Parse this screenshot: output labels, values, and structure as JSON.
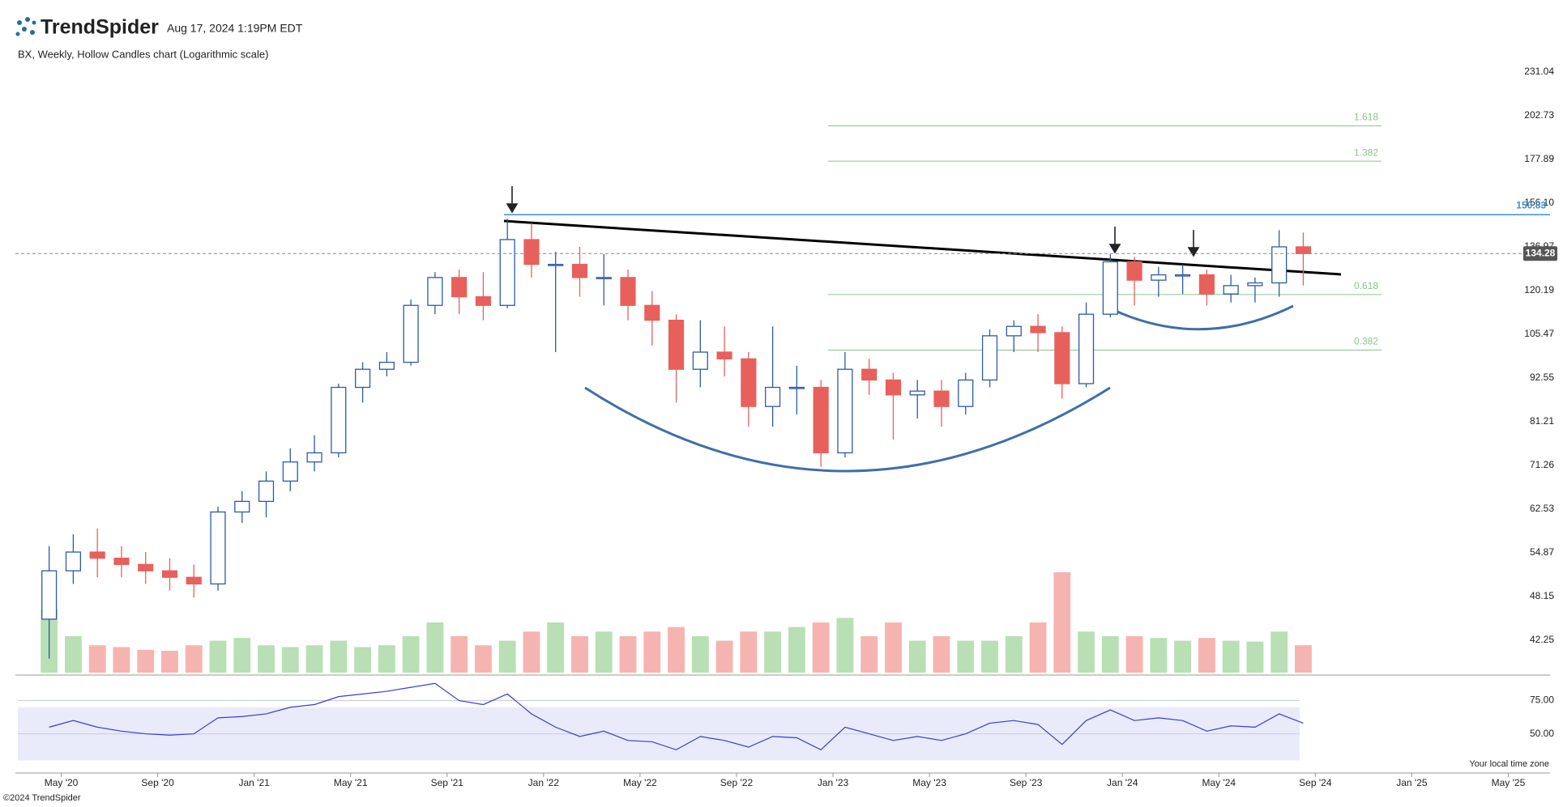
{
  "header": {
    "brand": "TrendSpider",
    "timestamp": "Aug 17, 2024 1:19PM EDT"
  },
  "footer": {
    "copyright": "©2024 TrendSpider",
    "timezone_note": "Your local time zone"
  },
  "chart_data": {
    "type": "candlestick",
    "title": "BX, Weekly, Hollow Candles chart (Logarithmic scale)",
    "log_scale": true,
    "x": [
      "2020-04",
      "2020-05",
      "2020-06",
      "2020-07",
      "2020-08",
      "2020-09",
      "2020-10",
      "2020-11",
      "2020-12",
      "2021-01",
      "2021-02",
      "2021-03",
      "2021-04",
      "2021-05",
      "2021-06",
      "2021-07",
      "2021-08",
      "2021-09",
      "2021-10",
      "2021-11",
      "2021-12",
      "2022-01",
      "2022-02",
      "2022-03",
      "2022-04",
      "2022-05",
      "2022-06",
      "2022-07",
      "2022-08",
      "2022-09",
      "2022-10",
      "2022-11",
      "2022-12",
      "2023-01",
      "2023-02",
      "2023-03",
      "2023-04",
      "2023-05",
      "2023-06",
      "2023-07",
      "2023-08",
      "2023-09",
      "2023-10",
      "2023-11",
      "2023-12",
      "2024-01",
      "2024-02",
      "2024-03",
      "2024-04",
      "2024-05",
      "2024-06",
      "2024-07",
      "2024-08"
    ],
    "open": [
      45,
      52,
      55,
      54,
      53,
      52,
      51,
      50,
      62,
      64,
      68,
      72,
      74,
      90,
      95,
      97,
      115,
      125,
      118,
      115,
      140,
      130,
      130,
      125,
      125,
      115,
      110,
      95,
      100,
      98,
      85,
      90,
      90,
      74,
      95,
      92,
      88,
      89,
      85,
      92,
      105,
      108,
      106,
      91,
      112,
      131,
      124,
      126,
      126,
      119,
      122,
      123,
      137
    ],
    "high": [
      56,
      58,
      59,
      56,
      55,
      54,
      53,
      63,
      66,
      70,
      75,
      78,
      91,
      97,
      100,
      117,
      127,
      128,
      127,
      149,
      147,
      135,
      137,
      134,
      128,
      120,
      112,
      110,
      108,
      100,
      108,
      96,
      92,
      100,
      98,
      94,
      92,
      92,
      94,
      107,
      110,
      112,
      108,
      116,
      134,
      133,
      129,
      130,
      128,
      126,
      125,
      144,
      143
    ],
    "low": [
      40,
      50,
      51,
      51,
      50,
      49,
      48,
      49,
      60,
      61,
      66,
      70,
      73,
      86,
      93,
      96,
      112,
      112,
      110,
      114,
      125,
      100,
      118,
      115,
      110,
      102,
      86,
      90,
      93,
      80,
      80,
      83,
      71,
      73,
      88,
      77,
      82,
      80,
      83,
      90,
      100,
      100,
      87,
      90,
      111,
      115,
      118,
      119,
      115,
      116,
      116,
      118,
      122
    ],
    "close": [
      52,
      55,
      54,
      53,
      52,
      51,
      50,
      62,
      64,
      68,
      72,
      74,
      90,
      95,
      97,
      115,
      125,
      118,
      115,
      140,
      130,
      130,
      125,
      125,
      115,
      110,
      95,
      100,
      98,
      85,
      90,
      90,
      74,
      95,
      92,
      88,
      89,
      85,
      92,
      105,
      108,
      106,
      91,
      112,
      131,
      124,
      126,
      126,
      119,
      122,
      123,
      137,
      134.28
    ],
    "volume": [
      70,
      40,
      30,
      28,
      25,
      24,
      30,
      35,
      38,
      30,
      28,
      30,
      35,
      28,
      30,
      40,
      55,
      40,
      30,
      35,
      45,
      55,
      40,
      45,
      40,
      45,
      50,
      40,
      35,
      45,
      45,
      50,
      55,
      60,
      40,
      55,
      35,
      40,
      35,
      35,
      40,
      55,
      110,
      45,
      40,
      40,
      38,
      35,
      38,
      35,
      34,
      45,
      30
    ],
    "up_color": "#2c5aa8",
    "down_color": "#e8605b",
    "volume_up_color": "#b9dfb5",
    "volume_down_color": "#f6b4b1",
    "xlim": [
      "2020-03",
      "2025-07"
    ],
    "xticks": [
      {
        "value": "2020-05",
        "label": "May '20"
      },
      {
        "value": "2020-09",
        "label": "Sep '20"
      },
      {
        "value": "2021-01",
        "label": "Jan '21"
      },
      {
        "value": "2021-05",
        "label": "May '21"
      },
      {
        "value": "2021-09",
        "label": "Sep '21"
      },
      {
        "value": "2022-01",
        "label": "Jan '22"
      },
      {
        "value": "2022-05",
        "label": "May '22"
      },
      {
        "value": "2022-09",
        "label": "Sep '22"
      },
      {
        "value": "2023-01",
        "label": "Jan '23"
      },
      {
        "value": "2023-05",
        "label": "May '23"
      },
      {
        "value": "2023-09",
        "label": "Sep '23"
      },
      {
        "value": "2024-01",
        "label": "Jan '24"
      },
      {
        "value": "2024-05",
        "label": "May '24"
      },
      {
        "value": "2024-09",
        "label": "Sep '24"
      },
      {
        "value": "2025-01",
        "label": "Jan '25"
      },
      {
        "value": "2025-05",
        "label": "May '25"
      }
    ],
    "ylim": [
      38.35,
      239.6
    ],
    "yticks": [
      231.04,
      202.73,
      177.89,
      {
        "value": 156.1,
        "label": "156.10"
      },
      136.97,
      120.19,
      105.47,
      92.55,
      81.21,
      71.26,
      62.53,
      54.87,
      48.15,
      42.25
    ],
    "resistance": {
      "value": 150.83,
      "color": "#3d8fd6"
    },
    "last_price": 134.28,
    "fib_levels": [
      {
        "label": "1.618",
        "value": 196.7
      },
      {
        "label": "1.382",
        "value": 177
      },
      {
        "label": "0.618",
        "value": 118.8
      },
      {
        "label": "0.382",
        "value": 100.6
      }
    ],
    "fib_color": "#8bc48a",
    "rsi": {
      "values": [
        55,
        60,
        55,
        52,
        50,
        49,
        50,
        62,
        63,
        65,
        70,
        72,
        78,
        80,
        82,
        85,
        88,
        75,
        72,
        80,
        65,
        55,
        48,
        52,
        45,
        44,
        38,
        48,
        45,
        40,
        48,
        47,
        38,
        55,
        50,
        45,
        48,
        45,
        50,
        58,
        60,
        57,
        42,
        60,
        68,
        60,
        62,
        60,
        52,
        56,
        55,
        65,
        58
      ],
      "color": "#3b3bd4",
      "ylim": [
        20.5,
        92.4
      ],
      "yticks": [
        {
          "value": 50,
          "label": "50.00"
        },
        {
          "value": 75,
          "label": "75.00"
        }
      ],
      "band": [
        30,
        70
      ]
    }
  }
}
